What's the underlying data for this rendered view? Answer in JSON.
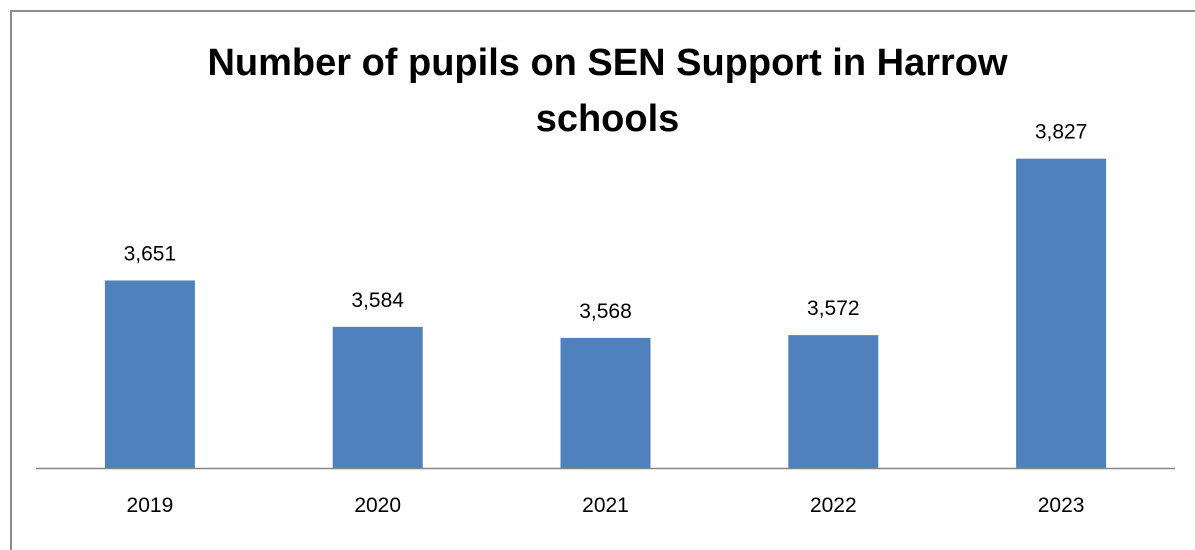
{
  "colors": {
    "bar": "#4F81BD",
    "axis": "#868686",
    "text": "#000000",
    "border": "#8c8c8c"
  },
  "chart_data": {
    "type": "bar",
    "title": "Number of pupils on SEN Support in Harrow schools",
    "title_lines": [
      "Number of pupils on SEN Support in Harrow",
      "schools"
    ],
    "categories": [
      "2019",
      "2020",
      "2021",
      "2022",
      "2023"
    ],
    "value_labels": [
      "3,651",
      "3,584",
      "3,568",
      "3,572",
      "3,827"
    ],
    "values": [
      3651,
      3584,
      3568,
      3572,
      3827
    ],
    "xlabel": "",
    "ylabel": "",
    "ylim": [
      3380,
      3880
    ],
    "grid": false,
    "legend": "none"
  }
}
